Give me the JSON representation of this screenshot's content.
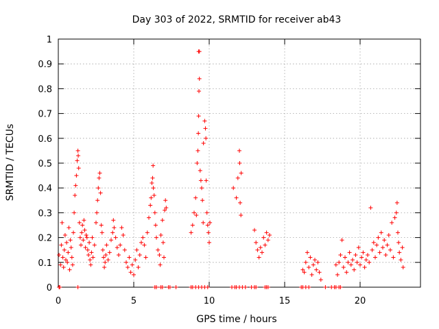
{
  "chart_data": {
    "type": "scatter",
    "title": "Day 303 of 2022, SRMTID for receiver ab43",
    "xlabel": "GPS time / hours",
    "ylabel": "SRMTID / TECUs",
    "xlim": [
      0,
      24
    ],
    "ylim": [
      0,
      1
    ],
    "grid": true,
    "x_ticks": [
      0,
      5,
      10,
      15,
      20
    ],
    "x_tick_labels": [
      "0",
      "5",
      "10",
      "15",
      "20"
    ],
    "y_ticks": [
      0,
      0.1,
      0.2,
      0.3,
      0.4,
      0.5,
      0.6,
      0.7,
      0.8,
      0.9,
      1
    ],
    "y_tick_labels": [
      "0",
      "0.1",
      "0.2",
      "0.3",
      "0.4",
      "0.5",
      "0.6",
      "0.7",
      "0.8",
      "0.9",
      "1"
    ],
    "marker": "+",
    "marker_color": "#ff0000",
    "series": [
      {
        "name": "SRMTID",
        "points": [
          [
            0.05,
            0.13
          ],
          [
            0.15,
            0.09
          ],
          [
            0.2,
            0.17
          ],
          [
            0.25,
            0.26
          ],
          [
            0.3,
            0.12
          ],
          [
            0.35,
            0.08
          ],
          [
            0.4,
            0.15
          ],
          [
            0.45,
            0.21
          ],
          [
            0.5,
            0.11
          ],
          [
            0.55,
            0.18
          ],
          [
            0.6,
            0.1
          ],
          [
            0.65,
            0.14
          ],
          [
            0.7,
            0.24
          ],
          [
            0.75,
            0.07
          ],
          [
            0.8,
            0.19
          ],
          [
            0.85,
            0.16
          ],
          [
            0.9,
            0.12
          ],
          [
            0.95,
            0.09
          ],
          [
            1.0,
            0.22
          ],
          [
            1.05,
            0.3
          ],
          [
            1.1,
            0.37
          ],
          [
            1.15,
            0.41
          ],
          [
            1.2,
            0.45
          ],
          [
            1.25,
            0.51
          ],
          [
            1.3,
            0.55
          ],
          [
            1.32,
            0.53
          ],
          [
            1.35,
            0.48
          ],
          [
            1.4,
            0.26
          ],
          [
            1.45,
            0.2
          ],
          [
            1.5,
            0.17
          ],
          [
            1.55,
            0.22
          ],
          [
            1.6,
            0.25
          ],
          [
            1.65,
            0.19
          ],
          [
            1.7,
            0.27
          ],
          [
            1.75,
            0.23
          ],
          [
            1.8,
            0.16
          ],
          [
            1.85,
            0.21
          ],
          [
            1.9,
            0.2
          ],
          [
            1.95,
            0.15
          ],
          [
            2.0,
            0.13
          ],
          [
            2.05,
            0.18
          ],
          [
            2.1,
            0.11
          ],
          [
            2.15,
            0.09
          ],
          [
            2.2,
            0.14
          ],
          [
            2.25,
            0.2
          ],
          [
            2.3,
            0.12
          ],
          [
            2.4,
            0.17
          ],
          [
            2.5,
            0.26
          ],
          [
            2.55,
            0.3
          ],
          [
            2.6,
            0.35
          ],
          [
            2.65,
            0.4
          ],
          [
            2.7,
            0.44
          ],
          [
            2.75,
            0.46
          ],
          [
            2.8,
            0.38
          ],
          [
            2.85,
            0.25
          ],
          [
            2.9,
            0.22
          ],
          [
            2.95,
            0.15
          ],
          [
            3.0,
            0.12
          ],
          [
            3.05,
            0.08
          ],
          [
            3.1,
            0.1
          ],
          [
            3.15,
            0.13
          ],
          [
            3.2,
            0.17
          ],
          [
            3.3,
            0.11
          ],
          [
            3.4,
            0.14
          ],
          [
            3.5,
            0.19
          ],
          [
            3.6,
            0.22
          ],
          [
            3.65,
            0.27
          ],
          [
            3.7,
            0.24
          ],
          [
            3.8,
            0.2
          ],
          [
            3.9,
            0.16
          ],
          [
            4.0,
            0.13
          ],
          [
            4.1,
            0.17
          ],
          [
            4.2,
            0.24
          ],
          [
            4.3,
            0.21
          ],
          [
            4.4,
            0.15
          ],
          [
            4.5,
            0.1
          ],
          [
            4.6,
            0.08
          ],
          [
            4.7,
            0.12
          ],
          [
            4.8,
            0.06
          ],
          [
            4.9,
            0.09
          ],
          [
            5.0,
            0.05
          ],
          [
            5.1,
            0.11
          ],
          [
            5.2,
            0.15
          ],
          [
            5.3,
            0.08
          ],
          [
            5.4,
            0.13
          ],
          [
            5.5,
            0.18
          ],
          [
            5.6,
            0.2
          ],
          [
            5.7,
            0.17
          ],
          [
            5.8,
            0.12
          ],
          [
            5.9,
            0.22
          ],
          [
            6.0,
            0.28
          ],
          [
            6.1,
            0.33
          ],
          [
            6.15,
            0.36
          ],
          [
            6.2,
            0.42
          ],
          [
            6.25,
            0.44
          ],
          [
            6.28,
            0.49
          ],
          [
            6.3,
            0.4
          ],
          [
            6.35,
            0.37
          ],
          [
            6.4,
            0.3
          ],
          [
            6.45,
            0.25
          ],
          [
            6.5,
            0.2
          ],
          [
            6.6,
            0.15
          ],
          [
            6.7,
            0.13
          ],
          [
            6.75,
            0.09
          ],
          [
            6.8,
            0.21
          ],
          [
            6.9,
            0.27
          ],
          [
            6.95,
            0.18
          ],
          [
            7.0,
            0.12
          ],
          [
            7.05,
            0.31
          ],
          [
            7.1,
            0.35
          ],
          [
            7.15,
            0.32
          ],
          [
            8.8,
            0.22
          ],
          [
            8.9,
            0.25
          ],
          [
            9.0,
            0.3
          ],
          [
            9.1,
            0.36
          ],
          [
            9.15,
            0.29
          ],
          [
            9.2,
            0.5
          ],
          [
            9.25,
            0.55
          ],
          [
            9.28,
            0.62
          ],
          [
            9.3,
            0.69
          ],
          [
            9.32,
            0.79
          ],
          [
            9.35,
            0.84
          ],
          [
            9.3,
            0.95
          ],
          [
            9.35,
            0.95
          ],
          [
            9.4,
            0.47
          ],
          [
            9.45,
            0.43
          ],
          [
            9.5,
            0.4
          ],
          [
            9.55,
            0.35
          ],
          [
            9.6,
            0.26
          ],
          [
            9.62,
            0.58
          ],
          [
            9.7,
            0.67
          ],
          [
            9.75,
            0.64
          ],
          [
            9.78,
            0.6
          ],
          [
            9.8,
            0.43
          ],
          [
            9.85,
            0.3
          ],
          [
            9.9,
            0.25
          ],
          [
            9.95,
            0.22
          ],
          [
            10.0,
            0.18
          ],
          [
            10.05,
            0.26
          ],
          [
            11.6,
            0.4
          ],
          [
            11.8,
            0.36
          ],
          [
            11.9,
            0.44
          ],
          [
            12.0,
            0.55
          ],
          [
            12.02,
            0.5
          ],
          [
            12.05,
            0.34
          ],
          [
            12.1,
            0.29
          ],
          [
            12.12,
            0.46
          ],
          [
            13.0,
            0.23
          ],
          [
            13.1,
            0.18
          ],
          [
            13.2,
            0.15
          ],
          [
            13.3,
            0.12
          ],
          [
            13.4,
            0.16
          ],
          [
            13.5,
            0.14
          ],
          [
            13.6,
            0.2
          ],
          [
            13.7,
            0.17
          ],
          [
            13.8,
            0.22
          ],
          [
            13.9,
            0.19
          ],
          [
            14.0,
            0.21
          ],
          [
            16.2,
            0.07
          ],
          [
            16.3,
            0.06
          ],
          [
            16.4,
            0.1
          ],
          [
            16.5,
            0.14
          ],
          [
            16.6,
            0.08
          ],
          [
            16.7,
            0.12
          ],
          [
            16.8,
            0.05
          ],
          [
            16.9,
            0.09
          ],
          [
            17.0,
            0.11
          ],
          [
            17.1,
            0.07
          ],
          [
            17.2,
            0.1
          ],
          [
            17.3,
            0.06
          ],
          [
            17.4,
            0.03
          ],
          [
            18.4,
            0.09
          ],
          [
            18.5,
            0.05
          ],
          [
            18.6,
            0.1
          ],
          [
            18.7,
            0.13
          ],
          [
            18.8,
            0.19
          ],
          [
            18.9,
            0.08
          ],
          [
            19.0,
            0.12
          ],
          [
            19.1,
            0.06
          ],
          [
            19.2,
            0.1
          ],
          [
            19.3,
            0.14
          ],
          [
            19.4,
            0.09
          ],
          [
            19.5,
            0.11
          ],
          [
            19.6,
            0.07
          ],
          [
            19.7,
            0.13
          ],
          [
            19.8,
            0.1
          ],
          [
            19.9,
            0.16
          ],
          [
            20.0,
            0.09
          ],
          [
            20.1,
            0.12
          ],
          [
            20.2,
            0.14
          ],
          [
            20.3,
            0.08
          ],
          [
            20.4,
            0.11
          ],
          [
            20.5,
            0.13
          ],
          [
            20.6,
            0.1
          ],
          [
            20.7,
            0.32
          ],
          [
            20.8,
            0.15
          ],
          [
            20.9,
            0.18
          ],
          [
            21.0,
            0.12
          ],
          [
            21.1,
            0.17
          ],
          [
            21.2,
            0.2
          ],
          [
            21.3,
            0.14
          ],
          [
            21.4,
            0.22
          ],
          [
            21.5,
            0.16
          ],
          [
            21.6,
            0.19
          ],
          [
            21.7,
            0.13
          ],
          [
            21.8,
            0.17
          ],
          [
            21.9,
            0.21
          ],
          [
            22.0,
            0.15
          ],
          [
            22.1,
            0.26
          ],
          [
            22.2,
            0.12
          ],
          [
            22.3,
            0.28
          ],
          [
            22.4,
            0.3
          ],
          [
            22.45,
            0.34
          ],
          [
            22.5,
            0.22
          ],
          [
            22.55,
            0.18
          ],
          [
            22.6,
            0.14
          ],
          [
            22.7,
            0.11
          ],
          [
            22.8,
            0.16
          ],
          [
            22.85,
            0.08
          ],
          [
            0.05,
            0
          ],
          [
            0.1,
            0
          ],
          [
            1.3,
            0
          ],
          [
            6.4,
            0
          ],
          [
            6.5,
            0
          ],
          [
            6.8,
            0
          ],
          [
            6.9,
            0
          ],
          [
            7.3,
            0
          ],
          [
            7.4,
            0
          ],
          [
            7.8,
            0
          ],
          [
            8.8,
            0
          ],
          [
            8.9,
            0
          ],
          [
            9.1,
            0
          ],
          [
            9.3,
            0
          ],
          [
            9.5,
            0
          ],
          [
            9.7,
            0
          ],
          [
            9.9,
            0
          ],
          [
            11.5,
            0
          ],
          [
            11.7,
            0
          ],
          [
            11.8,
            0
          ],
          [
            12.0,
            0
          ],
          [
            12.2,
            0
          ],
          [
            12.4,
            0
          ],
          [
            12.8,
            0
          ],
          [
            13.0,
            0
          ],
          [
            13.1,
            0
          ],
          [
            13.7,
            0
          ],
          [
            13.8,
            0
          ],
          [
            13.9,
            0
          ],
          [
            16.1,
            0
          ],
          [
            16.2,
            0
          ],
          [
            16.4,
            0
          ],
          [
            16.6,
            0
          ],
          [
            17.7,
            0
          ],
          [
            18.1,
            0
          ],
          [
            18.3,
            0
          ],
          [
            18.4,
            0
          ],
          [
            18.6,
            0
          ],
          [
            18.7,
            0
          ]
        ]
      }
    ]
  }
}
